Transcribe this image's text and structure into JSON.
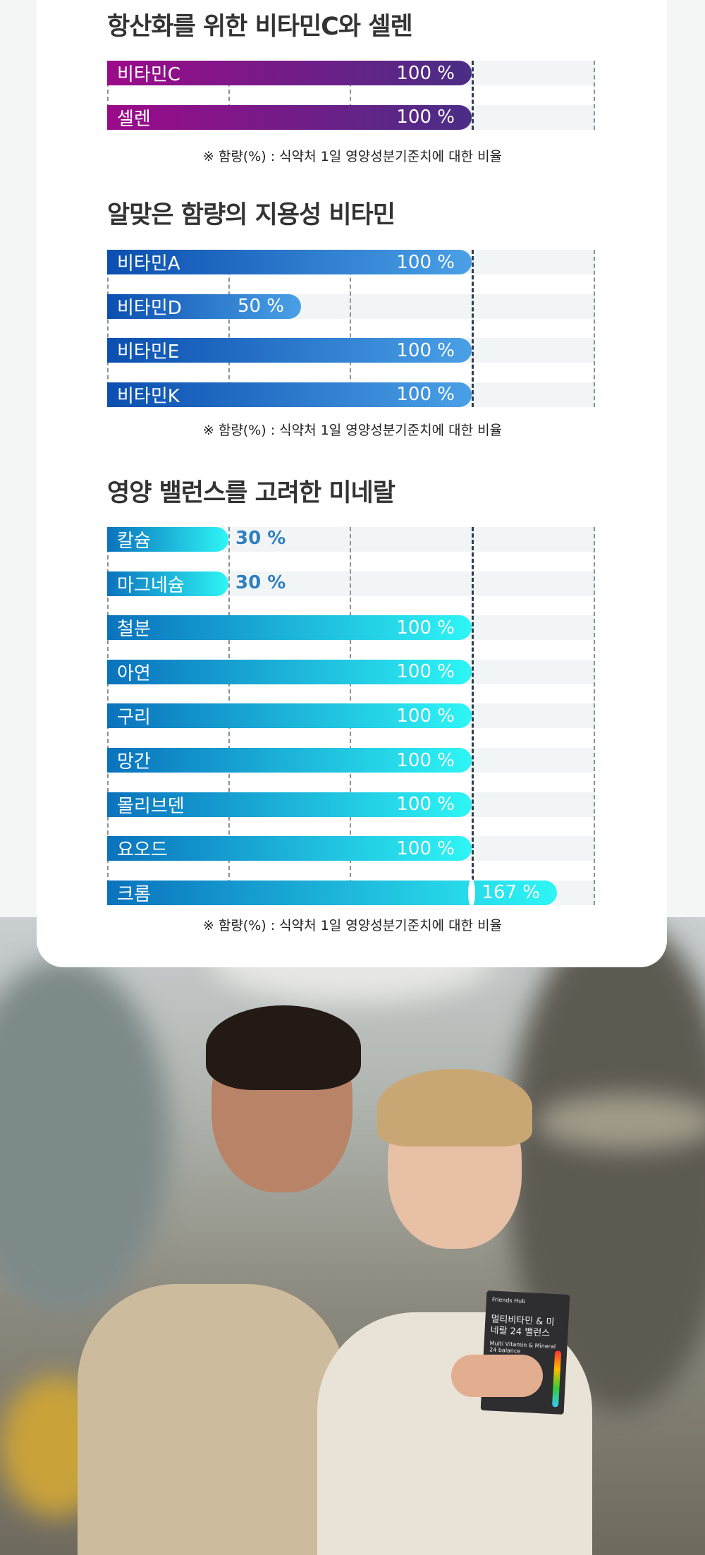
{
  "sections": [
    {
      "title": "항산화를 위한 비타민C와 셀렌",
      "gradient": [
        "#9c0a8a",
        "#4a2e86"
      ],
      "items": [
        {
          "label": "비타민C",
          "value": 100,
          "text": "100 %"
        },
        {
          "label": "셀렌",
          "value": 100,
          "text": "100 %"
        }
      ],
      "note": "※ 함량(%) : 식약처 1일 영양성분기준치에 대한 비율"
    },
    {
      "title": "알맞은 함량의 지용성 비타민",
      "gradient": [
        "#0b4fb0",
        "#4aa0e6"
      ],
      "items": [
        {
          "label": "비타민A",
          "value": 100,
          "text": "100 %"
        },
        {
          "label": "비타민D",
          "value": 50,
          "text": "50 %"
        },
        {
          "label": "비타민E",
          "value": 100,
          "text": "100 %"
        },
        {
          "label": "비타민K",
          "value": 100,
          "text": "100 %"
        }
      ],
      "note": "※ 함량(%) : 식약처 1일 영양성분기준치에 대한 비율"
    },
    {
      "title": "영양 밸런스를 고려한 미네랄",
      "gradient": [
        "#0a72bd",
        "#2ef5f5"
      ],
      "items": [
        {
          "label": "칼슘",
          "value": 30,
          "text": "30 %"
        },
        {
          "label": "마그네슘",
          "value": 30,
          "text": "30 %"
        },
        {
          "label": "철분",
          "value": 100,
          "text": "100 %"
        },
        {
          "label": "아연",
          "value": 100,
          "text": "100 %"
        },
        {
          "label": "구리",
          "value": 100,
          "text": "100 %"
        },
        {
          "label": "망간",
          "value": 100,
          "text": "100 %"
        },
        {
          "label": "몰리브덴",
          "value": 100,
          "text": "100 %"
        },
        {
          "label": "요오드",
          "value": 100,
          "text": "100 %"
        },
        {
          "label": "크롬",
          "value": 167,
          "text": "167 %"
        }
      ],
      "note": "※ 함량(%) : 식약처 1일 영양성분기준치에 대한 비율"
    }
  ],
  "product": {
    "brand": "Friends Hub",
    "name_ko": "멀티비타민 & 미네랄 24 밸런스",
    "name_en": "Multi Vitamin & Mineral 24 balance"
  }
}
